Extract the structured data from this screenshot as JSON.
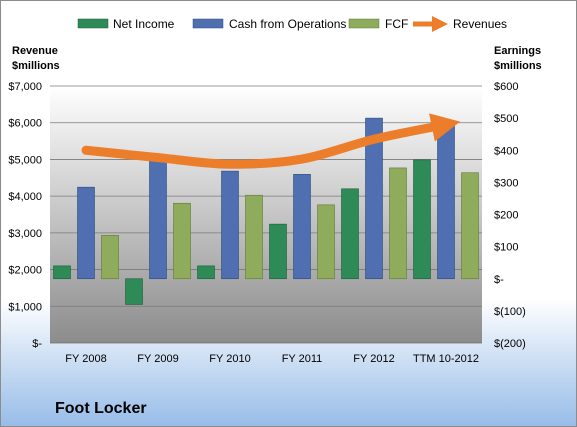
{
  "chart_data": {
    "type": "bar",
    "title": "Foot Locker",
    "categories": [
      "FY 2008",
      "FY 2009",
      "FY 2010",
      "FY 2011",
      "FY 2012",
      "TTM 10-2012"
    ],
    "series": [
      {
        "name": "Net Income",
        "axis": "right",
        "kind": "bar",
        "color": "#2e8b57",
        "values": [
          40,
          -80,
          40,
          170,
          280,
          370
        ]
      },
      {
        "name": "Cash from Operations",
        "axis": "right",
        "kind": "bar",
        "color": "#4f6fb0",
        "values": [
          285,
          375,
          335,
          325,
          500,
          490
        ]
      },
      {
        "name": "FCF",
        "axis": "right",
        "kind": "bar",
        "color": "#8fab5c",
        "values": [
          135,
          235,
          260,
          230,
          345,
          330
        ]
      },
      {
        "name": "Revenues",
        "axis": "left",
        "kind": "line",
        "color": "#ec7d2a",
        "values": [
          5250,
          5050,
          4870,
          5010,
          5550,
          5950
        ]
      }
    ],
    "left_axis": {
      "title_line1": "Revenue",
      "title_line2": "$millions",
      "ylim": [
        0,
        7000
      ],
      "ticks": [
        0,
        1000,
        2000,
        3000,
        4000,
        5000,
        6000,
        7000
      ],
      "tick_labels": [
        "$-",
        "$1,000",
        "$2,000",
        "$3,000",
        "$4,000",
        "$5,000",
        "$6,000",
        "$7,000"
      ]
    },
    "right_axis": {
      "title_line1": "Earnings",
      "title_line2": "$millions",
      "ylim": [
        -200,
        600
      ],
      "ticks": [
        -200,
        -100,
        0,
        100,
        200,
        300,
        400,
        500,
        600
      ],
      "tick_labels": [
        "$(200)",
        "$(100)",
        "$-",
        "$100",
        "$200",
        "$300",
        "$400",
        "$500",
        "$600"
      ]
    },
    "legend_position": "top",
    "grid": true
  }
}
